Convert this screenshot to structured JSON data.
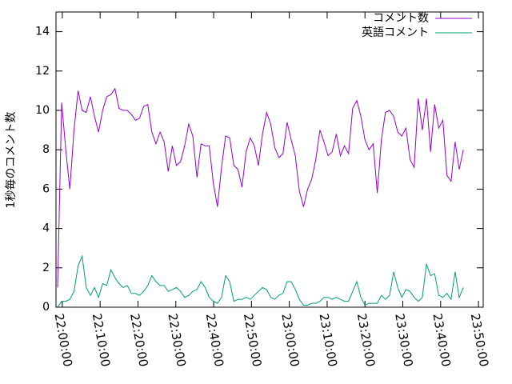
{
  "chart_data": {
    "type": "line",
    "ylabel": "1秒毎のコメント数",
    "x": [
      "21:58:45",
      "21:59:50",
      "22:00:55",
      "22:02:00",
      "22:03:05",
      "22:04:10",
      "22:05:15",
      "22:06:20",
      "22:07:25",
      "22:08:30",
      "22:09:35",
      "22:10:40",
      "22:11:45",
      "22:12:50",
      "22:13:55",
      "22:15:00",
      "22:16:05",
      "22:17:10",
      "22:18:15",
      "22:19:20",
      "22:20:25",
      "22:21:30",
      "22:22:35",
      "22:23:40",
      "22:24:45",
      "22:25:50",
      "22:26:55",
      "22:28:00",
      "22:29:05",
      "22:30:10",
      "22:31:15",
      "22:32:20",
      "22:33:25",
      "22:34:30",
      "22:35:35",
      "22:36:40",
      "22:37:45",
      "22:38:50",
      "22:39:55",
      "22:41:00",
      "22:42:05",
      "22:43:10",
      "22:44:15",
      "22:45:20",
      "22:46:25",
      "22:47:30",
      "22:48:35",
      "22:49:40",
      "22:50:45",
      "22:51:50",
      "22:52:55",
      "22:54:00",
      "22:55:05",
      "22:56:10",
      "22:57:15",
      "22:58:20",
      "22:59:25",
      "23:00:30",
      "23:01:35",
      "23:02:40",
      "23:03:45",
      "23:04:50",
      "23:05:55",
      "23:07:00",
      "23:08:05",
      "23:09:10",
      "23:10:15",
      "23:11:20",
      "23:12:25",
      "23:13:30",
      "23:14:35",
      "23:15:40",
      "23:16:45",
      "23:17:50",
      "23:18:55",
      "23:20:00",
      "23:21:05",
      "23:22:10",
      "23:23:15",
      "23:24:20",
      "23:25:25",
      "23:26:30",
      "23:27:35",
      "23:28:40",
      "23:29:45",
      "23:30:50",
      "23:31:55",
      "23:33:00",
      "23:34:05",
      "23:35:10",
      "23:36:15",
      "23:37:20",
      "23:38:25",
      "23:39:30",
      "23:40:35",
      "23:41:40",
      "23:42:45",
      "23:43:50",
      "23:44:55",
      "23:46:00"
    ],
    "series": [
      {
        "name": "コメント数",
        "color": "#9400d3",
        "values": [
          1,
          10.4,
          8,
          6,
          9,
          11,
          10,
          9.9,
          10.7,
          9.7,
          8.9,
          10,
          10.7,
          10.8,
          11.1,
          10.1,
          10,
          10,
          9.8,
          9.5,
          9.6,
          10.2,
          10.3,
          8.9,
          8.3,
          8.9,
          8.4,
          6.9,
          8.2,
          7.2,
          7.4,
          8.2,
          9.3,
          8.7,
          6.6,
          8.3,
          8.2,
          8.2,
          6.3,
          5.1,
          7.1,
          8.7,
          8.6,
          7.2,
          7,
          6.1,
          7.9,
          8.6,
          8.2,
          7.2,
          8.8,
          9.9,
          9.3,
          8.1,
          7.6,
          7.8,
          9.4,
          8.5,
          7.7,
          5.9,
          5.1,
          6,
          6.5,
          7.5,
          9,
          8.4,
          7.7,
          7.9,
          8.8,
          7.7,
          8.2,
          7.8,
          10.1,
          10.5,
          9.7,
          8.5,
          8,
          8.3,
          5.8,
          8.5,
          9.9,
          10,
          9.7,
          8.9,
          8.7,
          9.1,
          7.5,
          7.1,
          10.6,
          9,
          10.6,
          7.9,
          10.3,
          9.1,
          9.5,
          6.7,
          6.4,
          8.4,
          7,
          8
        ]
      },
      {
        "name": "英語コメント",
        "color": "#009e73",
        "values": [
          0,
          0.3,
          0.3,
          0.4,
          0.8,
          2.1,
          2.6,
          1,
          0.6,
          1,
          0.5,
          1.2,
          1.1,
          1.9,
          1.5,
          1.2,
          1,
          1.1,
          0.7,
          0.7,
          0.6,
          0.8,
          1.1,
          1.6,
          1.3,
          1.1,
          1.1,
          0.8,
          0.9,
          1,
          0.8,
          0.5,
          0.6,
          0.8,
          0.9,
          1.3,
          1,
          0.5,
          0.3,
          0.2,
          0.5,
          1.6,
          1.3,
          0.3,
          0.4,
          0.4,
          0.5,
          0.4,
          0.6,
          0.8,
          1,
          0.9,
          0.5,
          0.4,
          0.6,
          0.7,
          1.3,
          1.3,
          0.9,
          0.4,
          0.1,
          0.1,
          0.2,
          0.2,
          0.3,
          0.5,
          0.5,
          0.4,
          0.5,
          0.4,
          0.3,
          0.3,
          0.8,
          1.3,
          0.5,
          0.1,
          0.2,
          0.2,
          0.2,
          0.6,
          0.4,
          0.6,
          1.8,
          1,
          0.5,
          0.9,
          0.8,
          0.5,
          0.3,
          0.5,
          2.2,
          1.6,
          1.7,
          0.6,
          0.5,
          0.7,
          0.4,
          1.8,
          0.5,
          1
        ]
      }
    ],
    "xlim": [
      "21:58:20",
      "23:51:15"
    ],
    "xticks": [
      "22:00:00",
      "22:10:00",
      "22:20:00",
      "22:30:00",
      "22:40:00",
      "22:50:00",
      "23:00:00",
      "23:10:00",
      "23:20:00",
      "23:30:00",
      "23:40:00",
      "23:50:00"
    ],
    "ylim": [
      0,
      15
    ],
    "yticks": [
      0,
      2,
      4,
      6,
      8,
      10,
      12,
      14
    ],
    "legend": "top-right"
  }
}
